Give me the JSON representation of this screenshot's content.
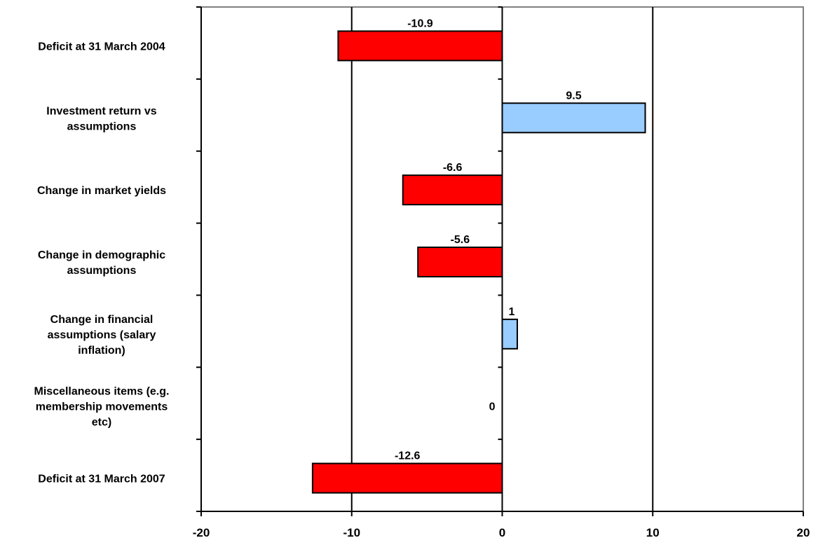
{
  "chart_data": {
    "type": "bar",
    "orientation": "horizontal",
    "title": "",
    "xlabel": "",
    "ylabel": "",
    "categories": [
      [
        "Deficit at 31 March 2004"
      ],
      [
        "Investment return vs",
        "assumptions"
      ],
      [
        "Change in market yields"
      ],
      [
        "Change in demographic",
        "assumptions"
      ],
      [
        "Change in financial",
        "assumptions (salary",
        "inflation)"
      ],
      [
        "Miscellaneous items (e.g.",
        "membership movements",
        "etc)"
      ],
      [
        "Deficit at 31 March 2007"
      ]
    ],
    "values": [
      -10.9,
      9.5,
      -6.6,
      -5.6,
      1,
      0,
      -12.6
    ],
    "value_labels": [
      "-10.9",
      "9.5",
      "-6.6",
      "-5.6",
      "1",
      "0",
      "-12.6"
    ],
    "xlim": [
      -20,
      20
    ],
    "x_ticks": [
      -20,
      -10,
      0,
      10,
      20
    ],
    "x_tick_labels": [
      "-20",
      "-10",
      "0",
      "10",
      "20"
    ],
    "grid": "vertical",
    "colors": {
      "negative": "#ff0000",
      "positive": "#99ccff",
      "bar_outline": "#000000",
      "frame": "#808080"
    }
  }
}
